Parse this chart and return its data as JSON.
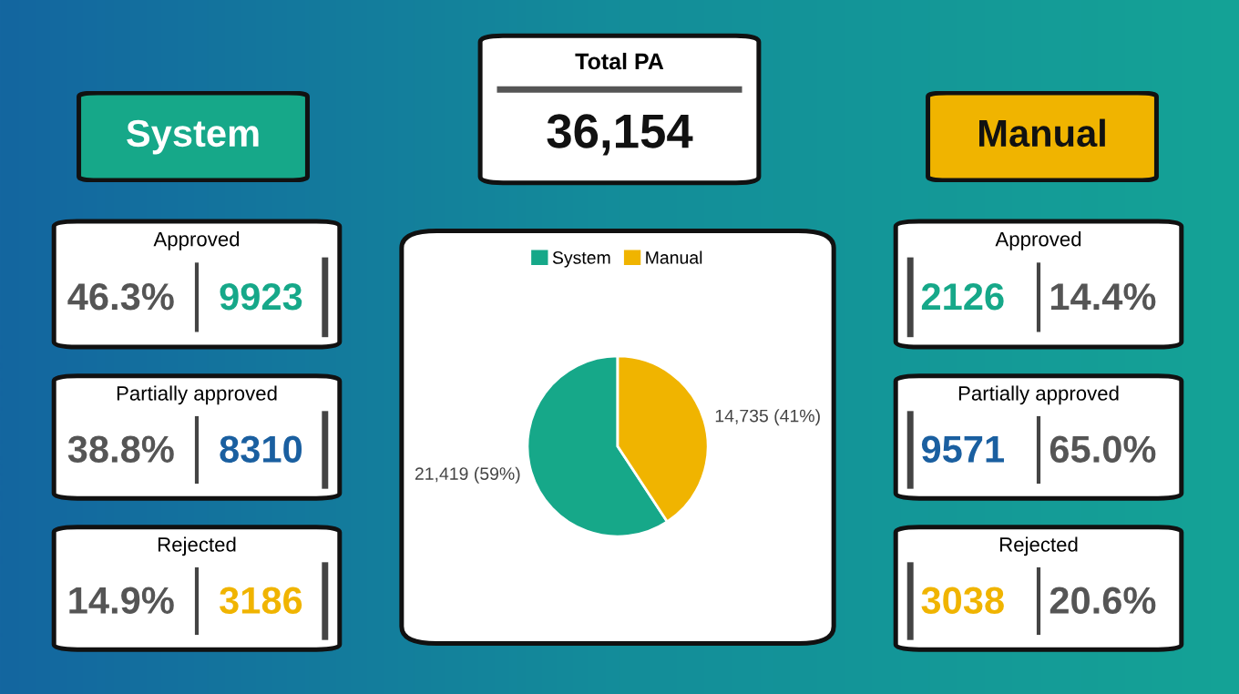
{
  "chart_data": [
    {
      "type": "other",
      "title": "System",
      "color": "#16a889"
    },
    {
      "type": "other",
      "title": "Total PA",
      "annotations": [
        "36,154"
      ],
      "colors": [
        "#111111"
      ]
    },
    {
      "type": "other",
      "title": "Manual",
      "color": "#f0b400"
    },
    {
      "type": "other",
      "title": "Approved",
      "annotations": [
        "46.3%",
        "9923"
      ],
      "colors": [
        "#555555",
        "#16a889"
      ]
    },
    {
      "type": "pie",
      "categories": [
        "System",
        "Manual"
      ],
      "values": [
        21419,
        14735
      ],
      "colors": [
        "#16a889",
        "#f0b400"
      ],
      "value_labels": [
        "21,419 (59%)",
        "14,735 (41%)"
      ],
      "legend": "top"
    },
    {
      "type": "other",
      "title": "Approved",
      "annotations": [
        "2126",
        "14.4%"
      ],
      "colors": [
        "#16a889",
        "#555555"
      ]
    },
    {
      "type": "other",
      "title": "Partially approved",
      "annotations": [
        "38.8%",
        "8310"
      ],
      "colors": [
        "#555555",
        "#1a5fa0"
      ]
    },
    {
      "type": "other",
      "title": "Partially approved",
      "annotations": [
        "9571",
        "65.0%"
      ],
      "colors": [
        "#1a5fa0",
        "#555555"
      ]
    },
    {
      "type": "other",
      "title": "Rejected",
      "annotations": [
        "14.9%",
        "3186"
      ],
      "colors": [
        "#555555",
        "#f0b400"
      ]
    },
    {
      "type": "other",
      "title": "Rejected",
      "annotations": [
        "3038",
        "20.6%"
      ],
      "colors": [
        "#f0b400",
        "#555555"
      ]
    }
  ]
}
